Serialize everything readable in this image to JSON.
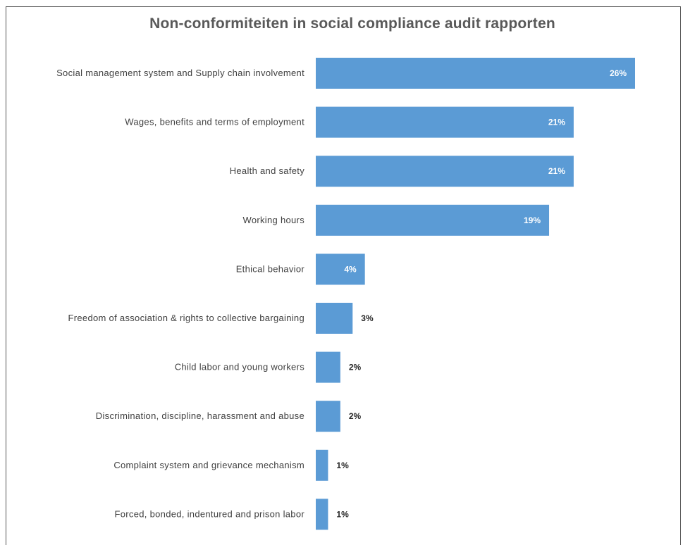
{
  "chart_data": {
    "type": "bar",
    "orientation": "horizontal",
    "title": "Non-conformiteiten in social compliance audit rapporten",
    "categories": [
      "Social management system and Supply chain involvement",
      "Wages, benefits and terms of employment",
      "Health and safety",
      "Working hours",
      "Ethical behavior",
      "Freedom of association & rights to collective bargaining",
      "Child labor and young workers",
      "Discrimination, discipline, harassment and abuse",
      "Complaint system and grievance mechanism",
      "Forced, bonded, indentured and prison labor"
    ],
    "values": [
      26,
      21,
      21,
      19,
      4,
      3,
      2,
      2,
      1,
      1
    ],
    "value_labels": [
      "26%",
      "21%",
      "21%",
      "19%",
      "4%",
      "3%",
      "2%",
      "2%",
      "1%",
      "1%"
    ],
    "xlim": [
      0,
      26
    ],
    "grid": false,
    "legend": "none",
    "bar_color": "#5b9bd5",
    "label_inside_color": "#ffffff",
    "label_outside_color": "#262626"
  }
}
